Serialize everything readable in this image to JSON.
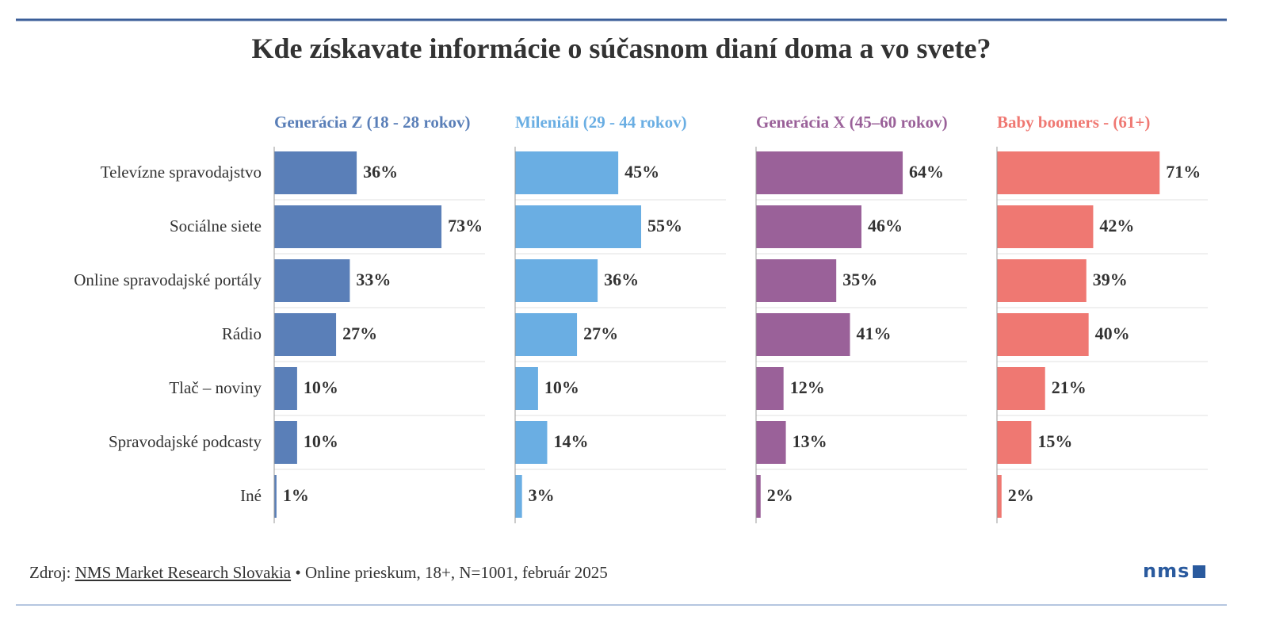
{
  "title": "Kde získavate informácie o súčasnom dianí doma a vo svete?",
  "source": {
    "prefix": "Zdroj:",
    "link": "NMS Market Research Slovakia",
    "rest": "• Online prieskum, 18+, N=1001, február 2025"
  },
  "logo": "nms",
  "chart_data": [
    {
      "type": "bar",
      "title": "Generácia Z (18 - 28 rokov)",
      "color": "#5a7fb8",
      "categories": [
        "Televízne spravodajstvo",
        "Sociálne siete",
        "Online spravodajské portály",
        "Rádio",
        "Tlač – noviny",
        "Spravodajské podcasty",
        "Iné"
      ],
      "values": [
        36,
        73,
        33,
        27,
        10,
        10,
        1
      ],
      "value_labels": [
        "36%",
        "73%",
        "33%",
        "27%",
        "10%",
        "10%",
        "1%"
      ],
      "xlim": [
        0,
        92
      ]
    },
    {
      "type": "bar",
      "title": "Mileniáli (29 - 44 rokov)",
      "color": "#6aaee3",
      "values": [
        45,
        55,
        36,
        27,
        10,
        14,
        3
      ],
      "value_labels": [
        "45%",
        "55%",
        "36%",
        "27%",
        "10%",
        "14%",
        "3%"
      ],
      "xlim": [
        0,
        92
      ]
    },
    {
      "type": "bar",
      "title": "Generácia X (45–60 rokov)",
      "color": "#9a6199",
      "values": [
        64,
        46,
        35,
        41,
        12,
        13,
        2
      ],
      "value_labels": [
        "64%",
        "46%",
        "35%",
        "41%",
        "12%",
        "13%",
        "2%"
      ],
      "xlim": [
        0,
        92
      ]
    },
    {
      "type": "bar",
      "title": "Baby boomers - (61+)",
      "color": "#ef7872",
      "values": [
        71,
        42,
        39,
        40,
        21,
        15,
        2
      ],
      "value_labels": [
        "71%",
        "42%",
        "39%",
        "40%",
        "21%",
        "15%",
        "2%"
      ],
      "xlim": [
        0,
        92
      ]
    }
  ]
}
